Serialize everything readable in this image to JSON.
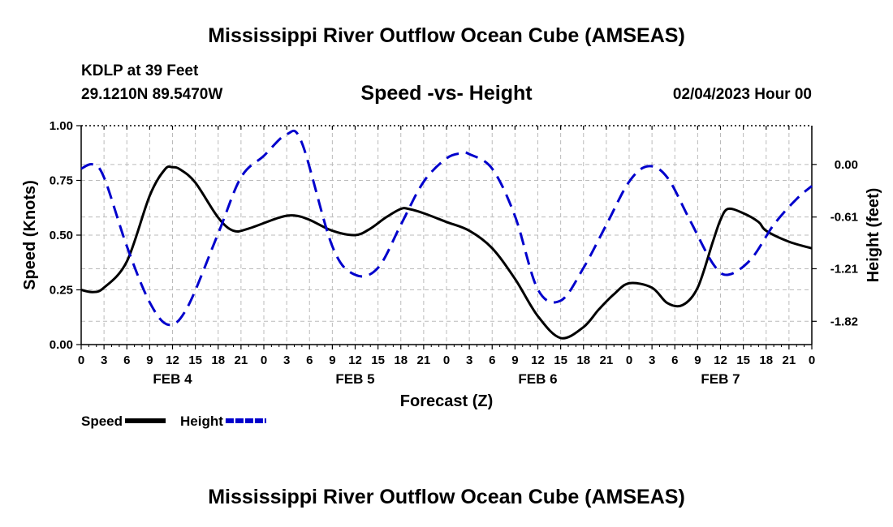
{
  "header": {
    "title": "Mississippi River Outflow Ocean Cube (AMSEAS)",
    "station": "KDLP at 39 Feet",
    "location": "29.1210N  89.5470W",
    "subtitle": "Speed -vs- Height",
    "datetime": "02/04/2023 Hour 00"
  },
  "footer": {
    "title": "Mississippi River Outflow Ocean Cube (AMSEAS)"
  },
  "chart_data": {
    "type": "line",
    "title": "Speed -vs- Height",
    "xlabel": "Forecast (Z)",
    "ylabel": "Speed (Knots)",
    "ylabel_right": "Height (feet)",
    "x_unit": "forecast hours from 02/04/2023 00Z",
    "xlim": [
      0,
      96
    ],
    "ylim": [
      0,
      1.0
    ],
    "ylim_right": [
      -2.09,
      0.45
    ],
    "x_ticks": [
      0,
      3,
      6,
      9,
      12,
      15,
      18,
      21,
      24,
      27,
      30,
      33,
      36,
      39,
      42,
      45,
      48,
      51,
      54,
      57,
      60,
      63,
      66,
      69,
      72,
      75,
      78,
      81,
      84,
      87,
      90,
      93,
      96
    ],
    "x_tick_labels": [
      "0",
      "3",
      "6",
      "9",
      "12",
      "15",
      "18",
      "21",
      "0",
      "3",
      "6",
      "9",
      "12",
      "15",
      "18",
      "21",
      "0",
      "3",
      "6",
      "9",
      "12",
      "15",
      "18",
      "21",
      "0",
      "3",
      "6",
      "9",
      "12",
      "15",
      "18",
      "21",
      "0"
    ],
    "day_labels": [
      {
        "label": "FEB 4",
        "at": 12
      },
      {
        "label": "FEB 5",
        "at": 36
      },
      {
        "label": "FEB 6",
        "at": 60
      },
      {
        "label": "FEB 7",
        "at": 84
      }
    ],
    "y_ticks": [
      0.0,
      0.25,
      0.5,
      0.75,
      1.0
    ],
    "y_tick_labels": [
      "0.00",
      "0.25",
      "0.50",
      "0.75",
      "1.00"
    ],
    "y_ticks_right": [
      0.0,
      -0.61,
      -1.21,
      -1.82
    ],
    "y_tick_labels_right": [
      "0.00",
      "-0.61",
      "-1.21",
      "-1.82"
    ],
    "grid": true,
    "legend_position": "bottom-left",
    "series": [
      {
        "name": "Speed",
        "axis": "left",
        "color": "#000000",
        "dash": "solid",
        "x": [
          0,
          1.5,
          3,
          6,
          9,
          11,
          12,
          13,
          15,
          18,
          20,
          22,
          26,
          28,
          30,
          33,
          36,
          38,
          40,
          42,
          43,
          45,
          48,
          51,
          54,
          57,
          60,
          63,
          66,
          68,
          70,
          72,
          75,
          77,
          79,
          81,
          83,
          84,
          85,
          87,
          89,
          90,
          93,
          96
        ],
        "y": [
          0.25,
          0.24,
          0.26,
          0.38,
          0.68,
          0.8,
          0.81,
          0.8,
          0.74,
          0.58,
          0.52,
          0.53,
          0.58,
          0.59,
          0.57,
          0.52,
          0.5,
          0.53,
          0.58,
          0.62,
          0.62,
          0.6,
          0.56,
          0.52,
          0.44,
          0.3,
          0.13,
          0.03,
          0.08,
          0.16,
          0.23,
          0.28,
          0.26,
          0.19,
          0.18,
          0.26,
          0.47,
          0.57,
          0.62,
          0.6,
          0.56,
          0.52,
          0.47,
          0.44
        ]
      },
      {
        "name": "Height",
        "axis": "right",
        "color": "#0000cc",
        "dash": "dashed",
        "x": [
          0,
          1.5,
          3,
          6,
          9,
          11.5,
          14,
          18,
          21,
          24,
          27,
          29,
          33,
          36,
          39,
          42,
          45,
          48,
          50,
          51,
          54,
          57,
          60,
          63,
          66,
          69,
          72,
          74.5,
          77,
          80,
          83,
          85,
          88,
          91,
          94,
          96
        ],
        "y": [
          -0.05,
          0.0,
          -0.15,
          -0.95,
          -1.6,
          -1.86,
          -1.65,
          -0.8,
          -0.15,
          0.1,
          0.35,
          0.25,
          -0.95,
          -1.28,
          -1.2,
          -0.7,
          -0.2,
          0.07,
          0.13,
          0.12,
          -0.05,
          -0.6,
          -1.45,
          -1.58,
          -1.2,
          -0.7,
          -0.2,
          -0.02,
          -0.15,
          -0.65,
          -1.15,
          -1.28,
          -1.1,
          -0.7,
          -0.4,
          -0.25
        ]
      }
    ]
  }
}
